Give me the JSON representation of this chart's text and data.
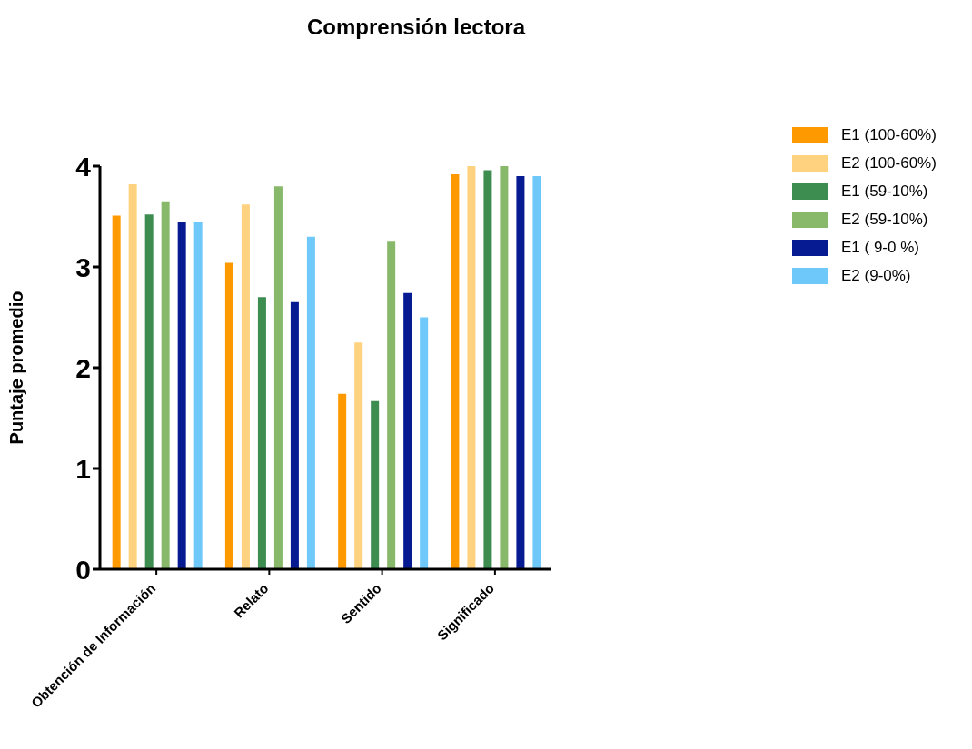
{
  "chart_data": {
    "type": "bar",
    "title": "Comprensión lectora",
    "ylabel": "Puntaje promedio",
    "categories": [
      "Obtención de Información",
      "Relato",
      "Sentido",
      "Significado"
    ],
    "series": [
      {
        "name": "E1 (100-60%)",
        "color": "#ff9900",
        "values": [
          3.51,
          3.04,
          1.74,
          3.92
        ]
      },
      {
        "name": "E2 (100-60%)",
        "color": "#ffd27f",
        "values": [
          3.82,
          3.62,
          2.25,
          4.0
        ]
      },
      {
        "name": "E1 (59-10%)",
        "color": "#3d8c50",
        "values": [
          3.52,
          2.7,
          1.67,
          3.96
        ]
      },
      {
        "name": "E2 (59-10%)",
        "color": "#88b96b",
        "values": [
          3.65,
          3.8,
          3.25,
          4.0
        ]
      },
      {
        "name": "E1 ( 9-0 %)",
        "color": "#061a91",
        "values": [
          3.45,
          2.65,
          2.74,
          3.9
        ]
      },
      {
        "name": "E2 (9-0%)",
        "color": "#6ec8f9",
        "values": [
          3.45,
          3.3,
          2.5,
          3.9
        ]
      }
    ],
    "ylim": [
      0,
      4
    ],
    "yticks": [
      0,
      1,
      2,
      3,
      4
    ],
    "grid": false,
    "legend": "top right"
  }
}
